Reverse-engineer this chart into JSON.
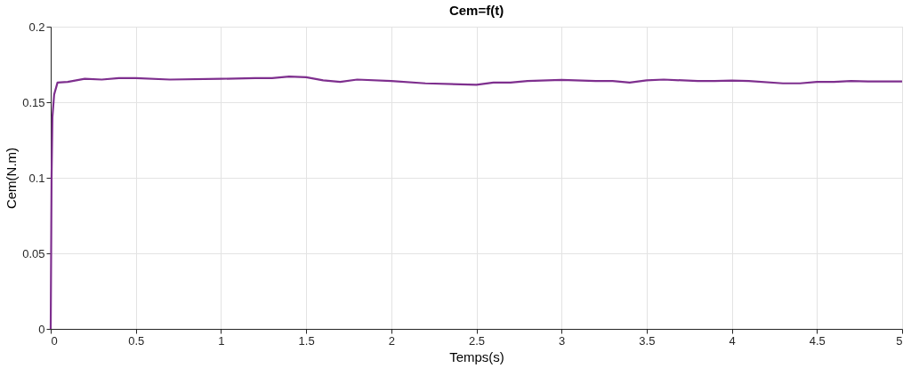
{
  "chart_data": {
    "type": "line",
    "title": "Cem=f(t)",
    "xlabel": "Temps(s)",
    "ylabel": "Cem(N.m)",
    "x": [
      0,
      0.005,
      0.01,
      0.02,
      0.04,
      0.1,
      0.2,
      0.3,
      0.4,
      0.5,
      0.7,
      1.0,
      1.2,
      1.3,
      1.4,
      1.5,
      1.6,
      1.7,
      1.8,
      2.0,
      2.2,
      2.5,
      2.6,
      2.7,
      2.8,
      3.0,
      3.2,
      3.3,
      3.4,
      3.5,
      3.6,
      3.8,
      3.9,
      4.0,
      4.1,
      4.3,
      4.4,
      4.5,
      4.6,
      4.7,
      4.8,
      5.0
    ],
    "series": [
      {
        "color": "#7e2f8e",
        "values": [
          0,
          0.1,
          0.14,
          0.155,
          0.163,
          0.1635,
          0.1655,
          0.165,
          0.166,
          0.166,
          0.165,
          0.1655,
          0.166,
          0.166,
          0.167,
          0.1665,
          0.1645,
          0.1635,
          0.165,
          0.164,
          0.1625,
          0.1615,
          0.163,
          0.163,
          0.164,
          0.1648,
          0.164,
          0.164,
          0.163,
          0.1645,
          0.165,
          0.164,
          0.164,
          0.1643,
          0.164,
          0.1625,
          0.1625,
          0.1635,
          0.1635,
          0.164,
          0.1637,
          0.1637
        ]
      }
    ],
    "xlim": [
      0,
      5
    ],
    "ylim": [
      0,
      0.2
    ],
    "xticks": [
      0,
      0.5,
      1,
      1.5,
      2,
      2.5,
      3,
      3.5,
      4,
      4.5,
      5
    ],
    "yticks": [
      0,
      0.05,
      0.1,
      0.15,
      0.2
    ],
    "grid": true,
    "marker": "none",
    "line_style": "solid"
  }
}
